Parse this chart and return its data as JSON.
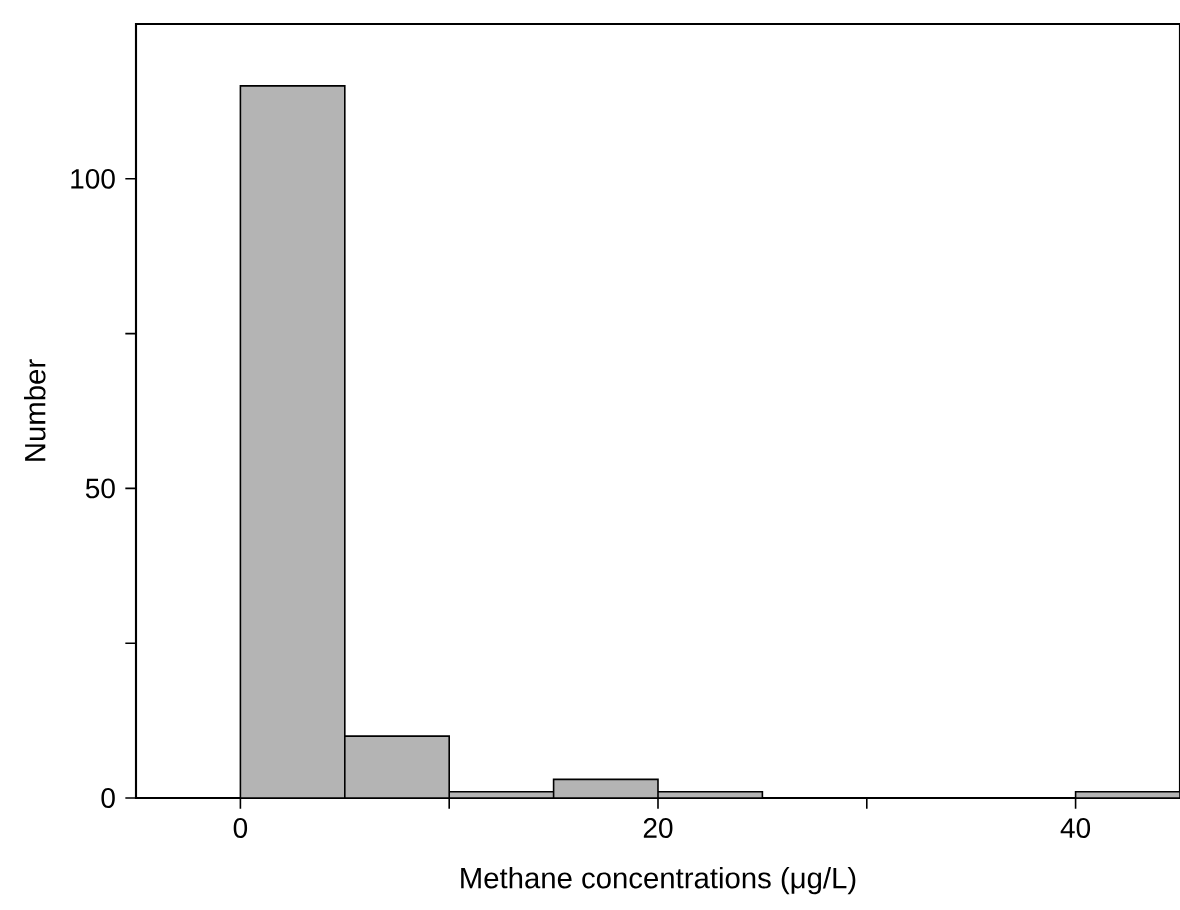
{
  "chart_data": {
    "type": "histogram",
    "xlabel": "Methane concentrations (μg/L)",
    "ylabel": "Number",
    "bins": [
      0,
      5,
      10,
      15,
      20,
      25,
      30,
      35,
      40,
      45
    ],
    "values": [
      115,
      10,
      1,
      3,
      1,
      0,
      0,
      0,
      1
    ],
    "color": "#b4b4b4",
    "xlim": [
      -5,
      45
    ],
    "ylim": [
      0,
      125
    ],
    "xticks": [
      0,
      {
        "value": 10,
        "label": null
      },
      20,
      {
        "value": 30,
        "label": null
      },
      40
    ],
    "yticks": [
      0,
      {
        "value": 25,
        "label": null
      },
      50,
      {
        "value": 75,
        "label": null
      },
      100
    ]
  }
}
